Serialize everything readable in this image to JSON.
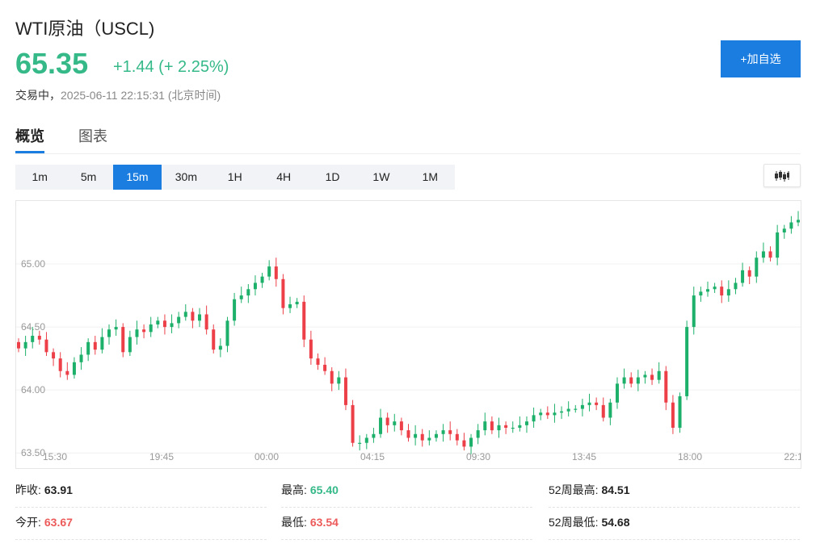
{
  "header": {
    "title": "WTI原油（USCL)",
    "price": "65.35",
    "change": "+1.44 (+ 2.25%)",
    "status": "交易中，",
    "timestamp": "2025-06-11 22:15:31 (北京时间)",
    "add_label": "+加自选"
  },
  "tabs": [
    {
      "label": "概览",
      "active": true
    },
    {
      "label": "图表",
      "active": false
    }
  ],
  "periods": [
    {
      "label": "1m"
    },
    {
      "label": "5m"
    },
    {
      "label": "15m",
      "active": true
    },
    {
      "label": "30m"
    },
    {
      "label": "1H"
    },
    {
      "label": "4H"
    },
    {
      "label": "1D"
    },
    {
      "label": "1W"
    },
    {
      "label": "1M"
    }
  ],
  "icons": {
    "chart_type": "candlestick-icon"
  },
  "colors": {
    "up": "#1db06a",
    "down": "#ec3f48",
    "accent": "#1b7de0",
    "price": "#35b988",
    "low": "#ec5a5a"
  },
  "stats": {
    "prev_close_label": "昨收:",
    "prev_close": "63.91",
    "open_label": "今开:",
    "open": "63.67",
    "high_label": "最高:",
    "high": "65.40",
    "low_label": "最低:",
    "low": "63.54",
    "w52_high_label": "52周最高:",
    "w52_high": "84.51",
    "w52_low_label": "52周最低:",
    "w52_low": "54.68"
  },
  "chart_data": {
    "type": "candlestick",
    "y_ticks": [
      "65.00",
      "64.50",
      "64.00",
      "63.50"
    ],
    "y_tick_values": [
      65.0,
      64.5,
      64.0,
      63.5
    ],
    "x_ticks": [
      "15:30",
      "19:45",
      "00:00",
      "04:15",
      "09:30",
      "13:45",
      "18:00",
      "22:1"
    ],
    "ylim": [
      63.45,
      65.5
    ],
    "grid": true,
    "closes": [
      64.33,
      64.38,
      64.43,
      64.4,
      64.3,
      64.25,
      64.15,
      64.12,
      64.22,
      64.28,
      64.38,
      64.32,
      64.42,
      64.48,
      64.5,
      64.3,
      64.42,
      64.48,
      64.46,
      64.52,
      64.55,
      64.5,
      64.53,
      64.58,
      64.62,
      64.55,
      64.6,
      64.48,
      64.32,
      64.35,
      64.55,
      64.72,
      64.75,
      64.8,
      64.85,
      64.9,
      64.98,
      64.88,
      64.65,
      64.68,
      64.7,
      64.4,
      64.25,
      64.2,
      64.15,
      64.05,
      64.1,
      63.88,
      63.58,
      63.58,
      63.62,
      63.65,
      63.78,
      63.72,
      63.75,
      63.68,
      63.62,
      63.65,
      63.6,
      63.62,
      63.65,
      63.68,
      63.65,
      63.6,
      63.55,
      63.62,
      63.68,
      63.75,
      63.68,
      63.72,
      63.7,
      63.7,
      63.72,
      63.75,
      63.8,
      63.82,
      63.8,
      63.82,
      63.83,
      63.85,
      63.85,
      63.88,
      63.9,
      63.88,
      63.78,
      63.9,
      64.05,
      64.1,
      64.05,
      64.1,
      64.12,
      64.08,
      64.15,
      63.9,
      63.7,
      63.95,
      64.5,
      64.75,
      64.78,
      64.8,
      64.82,
      64.75,
      64.8,
      64.85,
      64.95,
      64.9,
      65.05,
      65.1,
      65.05,
      65.25,
      65.28,
      65.33,
      65.35
    ]
  }
}
